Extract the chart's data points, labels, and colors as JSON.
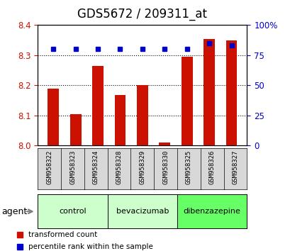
{
  "title": "GDS5672 / 209311_at",
  "samples": [
    "GSM958322",
    "GSM958323",
    "GSM958324",
    "GSM958328",
    "GSM958329",
    "GSM958330",
    "GSM958325",
    "GSM958326",
    "GSM958327"
  ],
  "red_values": [
    8.19,
    8.105,
    8.265,
    8.168,
    8.2,
    8.01,
    8.295,
    8.355,
    8.348
  ],
  "blue_values": [
    80,
    80,
    80,
    80,
    80,
    80,
    80,
    85,
    83
  ],
  "ylim_left": [
    8.0,
    8.4
  ],
  "ylim_right": [
    0,
    100
  ],
  "yticks_left": [
    8.0,
    8.1,
    8.2,
    8.3,
    8.4
  ],
  "yticks_right": [
    0,
    25,
    50,
    75,
    100
  ],
  "ytick_labels_right": [
    "0",
    "25",
    "50",
    "75",
    "100%"
  ],
  "groups": [
    {
      "label": "control",
      "indices": [
        0,
        1,
        2
      ],
      "color": "#ccffcc"
    },
    {
      "label": "bevacizumab",
      "indices": [
        3,
        4,
        5
      ],
      "color": "#ccffcc"
    },
    {
      "label": "dibenzazepine",
      "indices": [
        6,
        7,
        8
      ],
      "color": "#66ff66"
    }
  ],
  "bar_color": "#cc1100",
  "blue_color": "#0000cc",
  "bar_width": 0.5,
  "bg_color": "#d8d8d8",
  "plot_bg": "#ffffff",
  "legend_red_label": "transformed count",
  "legend_blue_label": "percentile rank within the sample",
  "agent_label": "agent",
  "title_fontsize": 12,
  "tick_fontsize": 8.5
}
